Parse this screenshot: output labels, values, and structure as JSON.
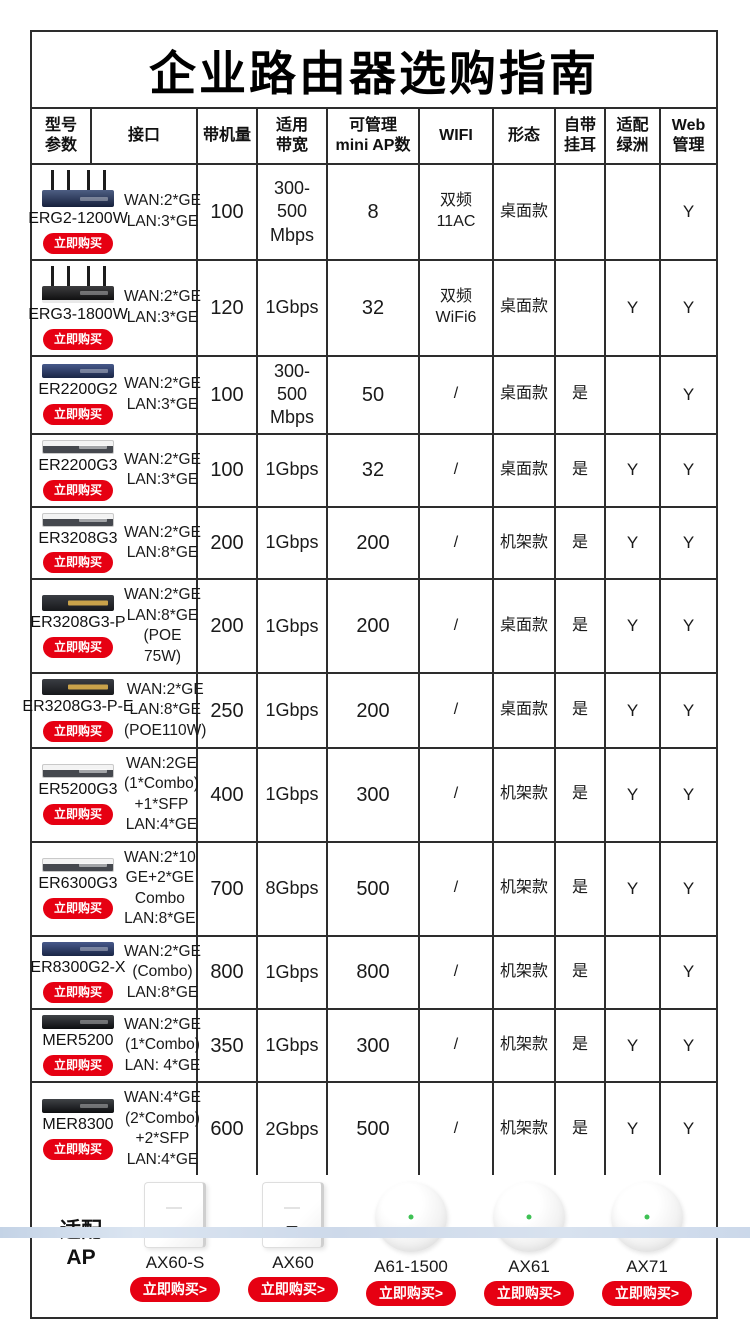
{
  "page": {
    "title": "企业路由器选购指南"
  },
  "colors": {
    "accent_red": "#e60012",
    "table_border": "#2d2d2d",
    "footer_band_blue": "#cdd9ea",
    "ap_led_green": "#3ec154"
  },
  "table": {
    "buy_label": "立即购买",
    "headers": [
      {
        "label": "型号\n参数"
      },
      {
        "label": "接口"
      },
      {
        "label": "带机量"
      },
      {
        "label": "适用\n带宽"
      },
      {
        "label": "可管理\nmini AP数"
      },
      {
        "label": "WIFI"
      },
      {
        "label": "形态"
      },
      {
        "label": "自带\n挂耳"
      },
      {
        "label": "适配\n绿洲"
      },
      {
        "label": "Web\n管理"
      }
    ],
    "rows": [
      {
        "model": "ERG2-1200W",
        "img": "antenna-navy",
        "interface": "WAN:2*GE\nLAN:3*GE",
        "capacity": "100",
        "bandwidth": "300-500\nMbps",
        "ap_count": "8",
        "wifi": "双频\n11AC",
        "form": "桌面款",
        "ears": "",
        "oasis": "",
        "web": "Y"
      },
      {
        "model": "ERG3-1800W",
        "img": "antenna-black",
        "interface": "WAN:2*GE\nLAN:3*GE",
        "capacity": "120",
        "bandwidth": "1Gbps",
        "ap_count": "32",
        "wifi": "双频\nWiFi6",
        "form": "桌面款",
        "ears": "",
        "oasis": "Y",
        "web": "Y"
      },
      {
        "model": "ER2200G2",
        "img": "flat-navy",
        "interface": "WAN:2*GE\nLAN:3*GE",
        "capacity": "100",
        "bandwidth": "300-500\nMbps",
        "ap_count": "50",
        "wifi": "/",
        "form": "桌面款",
        "ears": "是",
        "oasis": "",
        "web": "Y"
      },
      {
        "model": "ER2200G3",
        "img": "flat-silver",
        "interface": "WAN:2*GE\nLAN:3*GE",
        "capacity": "100",
        "bandwidth": "1Gbps",
        "ap_count": "32",
        "wifi": "/",
        "form": "桌面款",
        "ears": "是",
        "oasis": "Y",
        "web": "Y"
      },
      {
        "model": "ER3208G3",
        "img": "flat-silver",
        "interface": "WAN:2*GE\nLAN:8*GE",
        "capacity": "200",
        "bandwidth": "1Gbps",
        "ap_count": "200",
        "wifi": "/",
        "form": "机架款",
        "ears": "是",
        "oasis": "Y",
        "web": "Y"
      },
      {
        "model": "ER3208G3-P",
        "img": "flat-dark-ports",
        "interface": "WAN:2*GE\nLAN:8*GE\n(POE 75W)",
        "capacity": "200",
        "bandwidth": "1Gbps",
        "ap_count": "200",
        "wifi": "/",
        "form": "桌面款",
        "ears": "是",
        "oasis": "Y",
        "web": "Y"
      },
      {
        "model": "ER3208G3-P-E",
        "img": "flat-dark-ports",
        "interface": "WAN:2*GE\nLAN:8*GE\n(POE110W)",
        "capacity": "250",
        "bandwidth": "1Gbps",
        "ap_count": "200",
        "wifi": "/",
        "form": "桌面款",
        "ears": "是",
        "oasis": "Y",
        "web": "Y"
      },
      {
        "model": "ER5200G3",
        "img": "flat-silver",
        "interface": "WAN:2GE\n(1*Combo)\n+1*SFP\nLAN:4*GE",
        "capacity": "400",
        "bandwidth": "1Gbps",
        "ap_count": "300",
        "wifi": "/",
        "form": "机架款",
        "ears": "是",
        "oasis": "Y",
        "web": "Y"
      },
      {
        "model": "ER6300G3",
        "img": "flat-silver",
        "interface": "WAN:2*10\nGE+2*GE\nCombo\nLAN:8*GE",
        "capacity": "700",
        "bandwidth": "8Gbps",
        "ap_count": "500",
        "wifi": "/",
        "form": "机架款",
        "ears": "是",
        "oasis": "Y",
        "web": "Y"
      },
      {
        "model": "ER8300G2-X",
        "img": "flat-navy",
        "interface": "WAN:2*GE\n(Combo)\nLAN:8*GE",
        "capacity": "800",
        "bandwidth": "1Gbps",
        "ap_count": "800",
        "wifi": "/",
        "form": "机架款",
        "ears": "是",
        "oasis": "",
        "web": "Y"
      },
      {
        "model": "MER5200",
        "img": "flat-black",
        "interface": "WAN:2*GE\n(1*Combo)\nLAN: 4*GE",
        "capacity": "350",
        "bandwidth": "1Gbps",
        "ap_count": "300",
        "wifi": "/",
        "form": "机架款",
        "ears": "是",
        "oasis": "Y",
        "web": "Y"
      },
      {
        "model": "MER8300",
        "img": "flat-black",
        "interface": "WAN:4*GE\n(2*Combo)\n+2*SFP\nLAN:4*GE",
        "capacity": "600",
        "bandwidth": "2Gbps",
        "ap_count": "500",
        "wifi": "/",
        "form": "机架款",
        "ears": "是",
        "oasis": "Y",
        "web": "Y"
      }
    ]
  },
  "ap_section": {
    "label": "适配\nAP",
    "buy_label": "立即购买>",
    "items": [
      {
        "name": "AX60-S",
        "shape": "wall-plate"
      },
      {
        "name": "AX60",
        "shape": "wall-plate-port"
      },
      {
        "name": "A61-1500",
        "shape": "ceiling-round"
      },
      {
        "name": "AX61",
        "shape": "ceiling-round"
      },
      {
        "name": "AX71",
        "shape": "ceiling-round"
      }
    ]
  }
}
